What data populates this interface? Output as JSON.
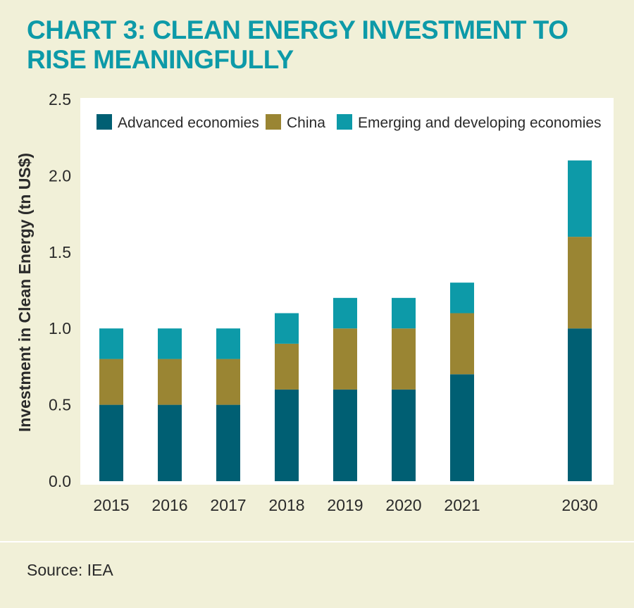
{
  "title": "CHART 3: CLEAN ENERGY INVESTMENT TO RISE MEANINGFULLY",
  "source": "Source: IEA",
  "colors": {
    "background": "#f1f0d8",
    "title": "#0d9aa8",
    "advanced": "#005f73",
    "china": "#9a8533",
    "emerging": "#0d9aa8"
  },
  "chart_data": {
    "type": "bar",
    "stacked": true,
    "title": "CHART 3: CLEAN ENERGY INVESTMENT TO RISE MEANINGFULLY",
    "xlabel": "",
    "ylabel": "Investment in Clean Energy (tn US$)",
    "ylim": [
      0,
      2.5
    ],
    "yticks": [
      "0.0",
      "0.5",
      "1.0",
      "1.5",
      "2.0",
      "2.5"
    ],
    "categories": [
      "2015",
      "2016",
      "2017",
      "2018",
      "2019",
      "2020",
      "2021",
      "2030"
    ],
    "legend_position": "top",
    "series": [
      {
        "name": "Advanced economies",
        "color": "#005f73",
        "values": [
          0.5,
          0.5,
          0.5,
          0.6,
          0.6,
          0.6,
          0.7,
          1.0
        ]
      },
      {
        "name": "China",
        "color": "#9a8533",
        "values": [
          0.3,
          0.3,
          0.3,
          0.3,
          0.4,
          0.4,
          0.4,
          0.6
        ]
      },
      {
        "name": "Emerging and developing economies",
        "color": "#0d9aa8",
        "values": [
          0.2,
          0.2,
          0.2,
          0.2,
          0.2,
          0.2,
          0.2,
          0.5
        ]
      }
    ]
  }
}
